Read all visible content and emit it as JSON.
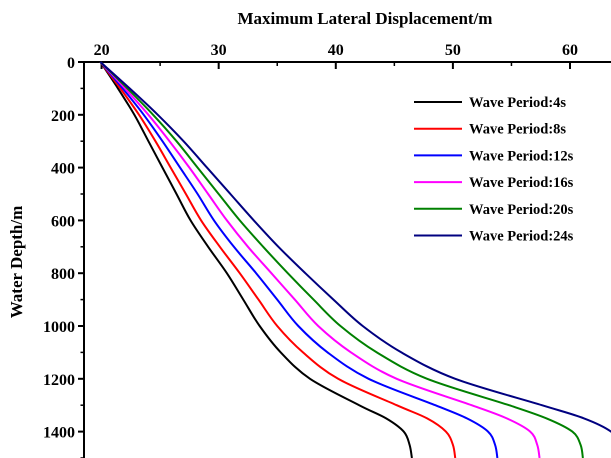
{
  "chart_data": {
    "type": "line",
    "title": "",
    "xlabel": "Maximum Lateral Displacement/m",
    "ylabel": "Water Depth/m",
    "x_axis_position": "top",
    "y_axis_inverted": true,
    "xlim": [
      18.5,
      63.5
    ],
    "ylim": [
      0,
      1500
    ],
    "xticks": [
      20,
      30,
      40,
      50,
      60
    ],
    "yticks": [
      0,
      200,
      400,
      600,
      800,
      1000,
      1200,
      1400
    ],
    "grid": false,
    "legend_position": "top-right",
    "depth": [
      0,
      100,
      200,
      300,
      400,
      500,
      600,
      700,
      800,
      900,
      1000,
      1100,
      1200,
      1300,
      1350,
      1400,
      1450,
      1500
    ],
    "series": [
      {
        "name": "Wave Period:4s",
        "color": "#000000",
        "displacement": [
          19.9,
          21.4,
          22.8,
          24.0,
          25.2,
          26.4,
          27.6,
          29.1,
          30.7,
          32.1,
          33.5,
          35.3,
          37.8,
          42.0,
          44.3,
          45.8,
          46.3,
          46.5
        ]
      },
      {
        "name": "Wave Period:8s",
        "color": "#ff0000",
        "displacement": [
          19.9,
          21.6,
          23.2,
          24.6,
          25.9,
          27.2,
          28.5,
          30.1,
          31.8,
          33.4,
          35.0,
          37.2,
          40.2,
          45.2,
          47.8,
          49.4,
          50.0,
          50.2
        ]
      },
      {
        "name": "Wave Period:12s",
        "color": "#0000ff",
        "displacement": [
          19.9,
          21.8,
          23.6,
          25.2,
          26.7,
          28.2,
          29.6,
          31.3,
          33.2,
          35.0,
          36.8,
          39.3,
          42.8,
          48.5,
          51.2,
          53.0,
          53.6,
          53.8
        ]
      },
      {
        "name": "Wave Period:16s",
        "color": "#ff00ff",
        "displacement": [
          19.9,
          22.0,
          24.0,
          25.8,
          27.5,
          29.1,
          30.7,
          32.5,
          34.5,
          36.5,
          38.5,
          41.3,
          45.2,
          51.6,
          54.6,
          56.6,
          57.2,
          57.4
        ]
      },
      {
        "name": "Wave Period:20s",
        "color": "#008000",
        "displacement": [
          19.9,
          22.2,
          24.4,
          26.4,
          28.2,
          30.0,
          31.8,
          33.8,
          35.9,
          38.1,
          40.4,
          43.5,
          47.8,
          54.8,
          58.0,
          60.2,
          60.9,
          61.1
        ]
      },
      {
        "name": "Wave Period:24s",
        "color": "#000080",
        "displacement": [
          19.9,
          22.4,
          24.8,
          27.0,
          29.0,
          31.0,
          33.0,
          35.1,
          37.4,
          39.8,
          42.3,
          45.6,
          50.2,
          57.6,
          61.2,
          63.5,
          64.3,
          64.6
        ]
      }
    ]
  }
}
